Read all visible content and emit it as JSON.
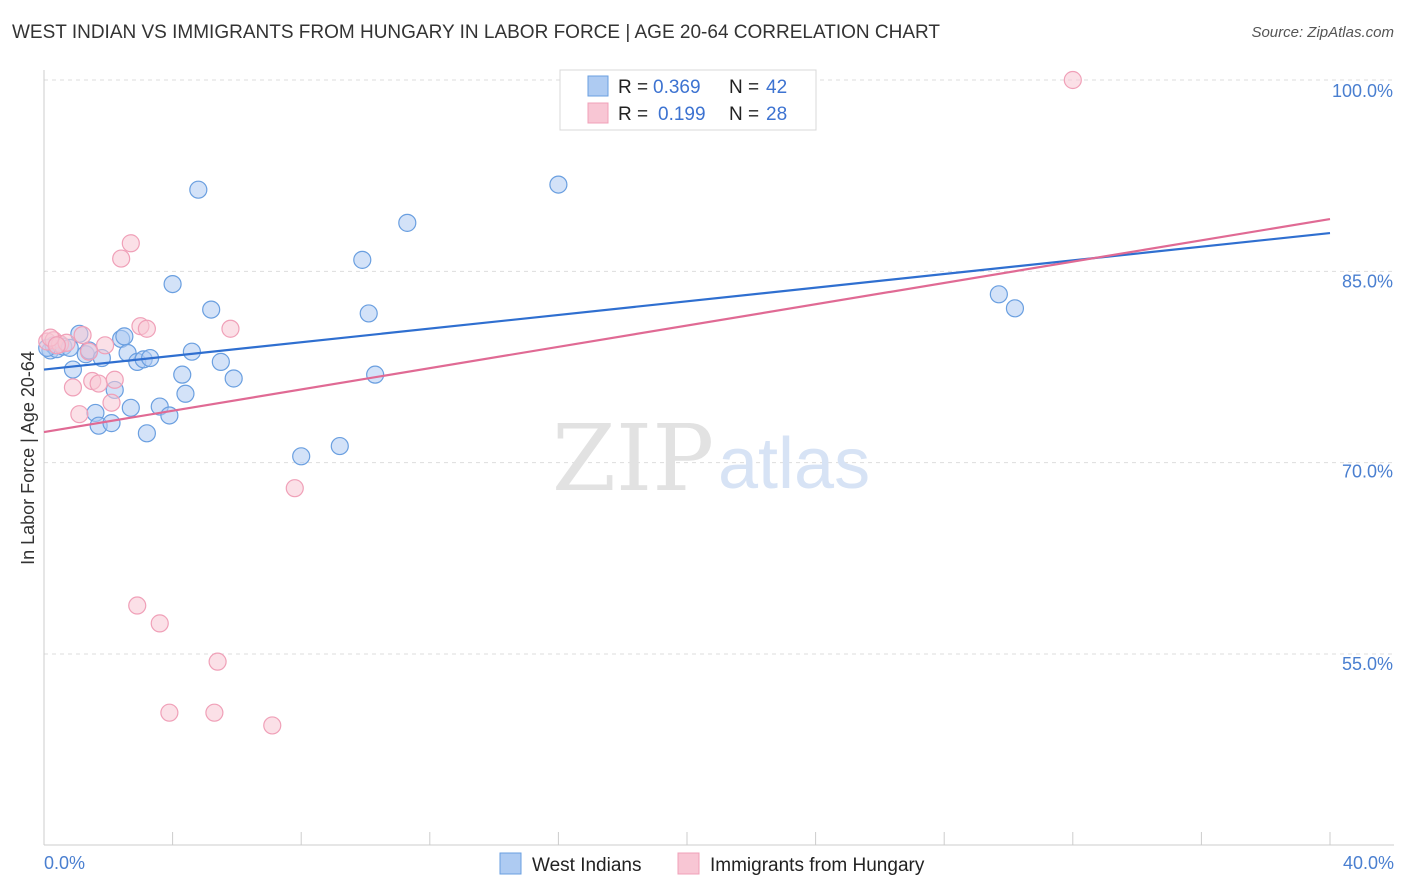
{
  "title": "WEST INDIAN VS IMMIGRANTS FROM HUNGARY IN LABOR FORCE | AGE 20-64 CORRELATION CHART",
  "source": "Source: ZipAtlas.com",
  "watermark": {
    "zip": "ZIP",
    "atlas": "atlas"
  },
  "chart_data": {
    "type": "scatter",
    "title": "WEST INDIAN VS IMMIGRANTS FROM HUNGARY IN LABOR FORCE | AGE 20-64 CORRELATION CHART",
    "xlabel": "",
    "ylabel": "In Labor Force | Age 20-64",
    "xlim": [
      0,
      40
    ],
    "ylim": [
      40,
      102.5
    ],
    "x_tick_labels": [
      "0.0%",
      "40.0%"
    ],
    "y_ticks": [
      55,
      70,
      85,
      100
    ],
    "y_tick_labels": [
      "55.0%",
      "70.0%",
      "85.0%",
      "100.0%"
    ],
    "grid": true,
    "legend": [
      {
        "r_label": "R =",
        "r": "0.369",
        "n_label": "N =",
        "n": "42"
      },
      {
        "r_label": "R =",
        "r": "0.199",
        "n_label": "N =",
        "n": "28"
      }
    ],
    "series": [
      {
        "name": "West Indians",
        "color": "#6a9fe0",
        "fill": "#aecbf2",
        "line_color": "#2f6fd0",
        "trend": {
          "x0": 0,
          "y0": 77.3,
          "x1": 40,
          "y1": 88.0
        },
        "points": [
          [
            0.2,
            78.8
          ],
          [
            0.3,
            79.2
          ],
          [
            0.4,
            78.9
          ],
          [
            0.6,
            79.1
          ],
          [
            0.8,
            79.0
          ],
          [
            0.9,
            77.3
          ],
          [
            1.1,
            80.1
          ],
          [
            1.3,
            78.5
          ],
          [
            1.4,
            78.8
          ],
          [
            1.6,
            73.9
          ],
          [
            1.7,
            72.9
          ],
          [
            1.8,
            78.2
          ],
          [
            2.1,
            73.1
          ],
          [
            2.2,
            75.7
          ],
          [
            2.4,
            79.7
          ],
          [
            2.5,
            79.9
          ],
          [
            2.6,
            78.6
          ],
          [
            2.7,
            74.3
          ],
          [
            2.9,
            77.9
          ],
          [
            3.1,
            78.1
          ],
          [
            3.2,
            72.3
          ],
          [
            3.3,
            78.2
          ],
          [
            3.6,
            74.4
          ],
          [
            3.9,
            73.7
          ],
          [
            4.0,
            84.0
          ],
          [
            4.3,
            76.9
          ],
          [
            4.4,
            75.4
          ],
          [
            4.6,
            78.7
          ],
          [
            4.8,
            91.4
          ],
          [
            5.2,
            82.0
          ],
          [
            5.5,
            77.9
          ],
          [
            5.9,
            76.6
          ],
          [
            8.0,
            70.5
          ],
          [
            9.2,
            71.3
          ],
          [
            9.9,
            85.9
          ],
          [
            10.1,
            81.7
          ],
          [
            10.3,
            76.9
          ],
          [
            11.3,
            88.8
          ],
          [
            16.0,
            91.8
          ],
          [
            29.7,
            83.2
          ],
          [
            30.2,
            82.1
          ],
          [
            0.1,
            79.0
          ]
        ]
      },
      {
        "name": "Immigrants from Hungary",
        "color": "#f0a0b8",
        "fill": "#f8c6d4",
        "line_color": "#e06a94",
        "trend": {
          "x0": 0,
          "y0": 72.4,
          "x1": 40,
          "y1": 89.1
        },
        "points": [
          [
            0.1,
            79.5
          ],
          [
            0.3,
            79.6
          ],
          [
            0.5,
            79.3
          ],
          [
            0.7,
            79.4
          ],
          [
            0.9,
            75.9
          ],
          [
            1.1,
            73.8
          ],
          [
            1.2,
            80.0
          ],
          [
            1.4,
            78.7
          ],
          [
            1.5,
            76.4
          ],
          [
            1.7,
            76.2
          ],
          [
            1.9,
            79.2
          ],
          [
            2.1,
            74.7
          ],
          [
            2.2,
            76.5
          ],
          [
            2.4,
            86.0
          ],
          [
            2.7,
            87.2
          ],
          [
            3.0,
            80.7
          ],
          [
            3.2,
            80.5
          ],
          [
            5.8,
            80.5
          ],
          [
            2.9,
            58.8
          ],
          [
            3.6,
            57.4
          ],
          [
            3.9,
            50.4
          ],
          [
            5.3,
            50.4
          ],
          [
            5.4,
            54.4
          ],
          [
            7.1,
            49.4
          ],
          [
            7.8,
            68.0
          ],
          [
            32.0,
            100.0
          ],
          [
            0.2,
            79.8
          ],
          [
            0.4,
            79.2
          ]
        ]
      }
    ]
  }
}
